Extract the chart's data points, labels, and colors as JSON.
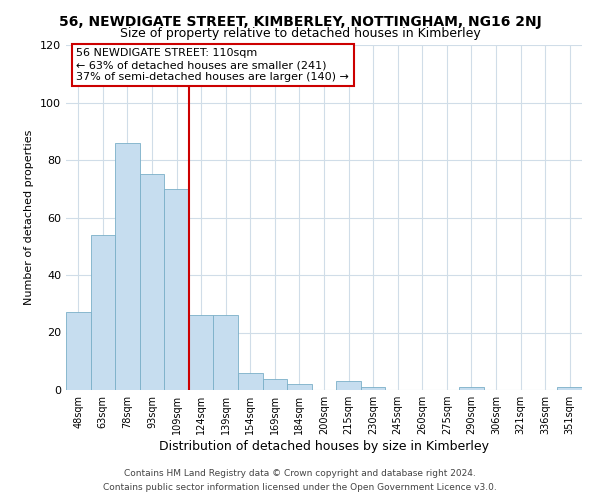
{
  "title": "56, NEWDIGATE STREET, KIMBERLEY, NOTTINGHAM, NG16 2NJ",
  "subtitle": "Size of property relative to detached houses in Kimberley",
  "bar_values": [
    27,
    54,
    86,
    75,
    70,
    26,
    26,
    6,
    4,
    2,
    0,
    3,
    1,
    0,
    0,
    0,
    1,
    0,
    0,
    0,
    1
  ],
  "bar_labels": [
    "48sqm",
    "63sqm",
    "78sqm",
    "93sqm",
    "109sqm",
    "124sqm",
    "139sqm",
    "154sqm",
    "169sqm",
    "184sqm",
    "200sqm",
    "215sqm",
    "230sqm",
    "245sqm",
    "260sqm",
    "275sqm",
    "290sqm",
    "306sqm",
    "321sqm",
    "336sqm",
    "351sqm"
  ],
  "bar_color": "#c6ddef",
  "bar_edge_color": "#7aafc8",
  "xlabel": "Distribution of detached houses by size in Kimberley",
  "ylabel": "Number of detached properties",
  "ylim": [
    0,
    120
  ],
  "yticks": [
    0,
    20,
    40,
    60,
    80,
    100,
    120
  ],
  "red_line_x": 4.5,
  "red_line_color": "#cc0000",
  "annotation_text": "56 NEWDIGATE STREET: 110sqm\n← 63% of detached houses are smaller (241)\n37% of semi-detached houses are larger (140) →",
  "annotation_box_edge": "#cc0000",
  "footer_line1": "Contains HM Land Registry data © Crown copyright and database right 2024.",
  "footer_line2": "Contains public sector information licensed under the Open Government Licence v3.0.",
  "title_fontsize": 10,
  "subtitle_fontsize": 9,
  "xlabel_fontsize": 9,
  "ylabel_fontsize": 8,
  "annotation_fontsize": 8,
  "footer_fontsize": 6.5,
  "background_color": "#ffffff",
  "grid_color": "#d0dde8"
}
